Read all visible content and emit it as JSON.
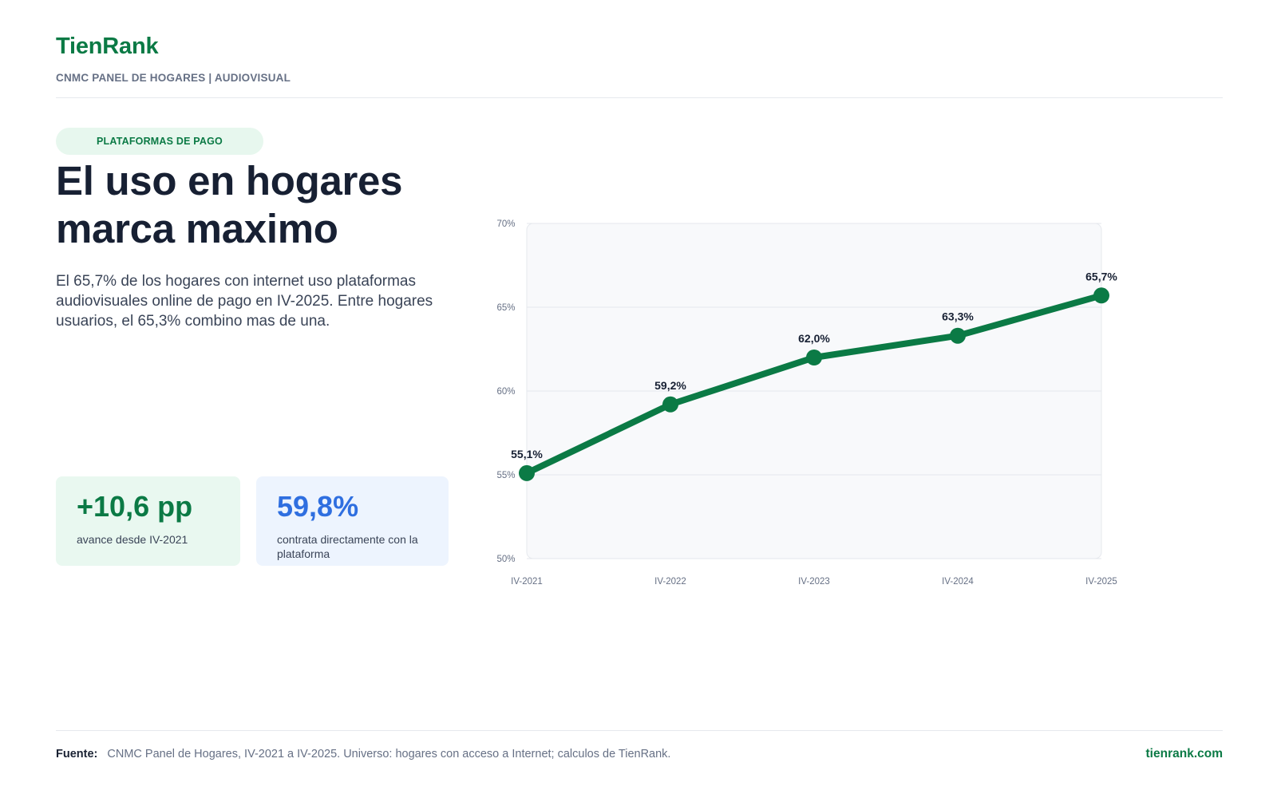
{
  "brand": {
    "name": "TienRank",
    "subtitle": "CNMC PANEL DE HOGARES | AUDIOVISUAL"
  },
  "category_pill": "PLATAFORMAS DE PAGO",
  "headline": {
    "line1": "El uso en hogares",
    "line2": "marca maximo"
  },
  "lede": "El 65,7% de los hogares con internet uso plataformas audiovisuales online de pago en IV-2025. Entre hogares usuarios, el 65,3% combino mas de una.",
  "stats": [
    {
      "value": "+10,6 pp",
      "label": "avance desde IV-2021"
    },
    {
      "value": "59,8%",
      "label": "contrata directamente con la plataforma"
    }
  ],
  "chart_data": {
    "type": "line",
    "categories": [
      "IV-2021",
      "IV-2022",
      "IV-2023",
      "IV-2024",
      "IV-2025"
    ],
    "values": [
      55.1,
      59.2,
      62.0,
      63.3,
      65.7
    ],
    "data_labels": [
      "55,1%",
      "59,2%",
      "62,0%",
      "63,3%",
      "65,7%"
    ],
    "ylim": [
      50,
      70
    ],
    "yticks": [
      50,
      55,
      60,
      65,
      70
    ],
    "ytick_labels": [
      "50%",
      "55%",
      "60%",
      "65%",
      "70%"
    ],
    "grid": true,
    "line_color": "#0b7a45",
    "plot_background": "#f8f9fb"
  },
  "footer": {
    "source_key": "Fuente:",
    "source_text": "CNMC Panel de Hogares, IV-2021 a IV-2025. Universo: hogares con acceso a Internet; calculos de TienRank.",
    "site": "tienrank.com"
  },
  "colors": {
    "brand_green": "#0b7a45",
    "accent_blue": "#2f6fe0",
    "text_dark": "#172033",
    "text_muted": "#667085"
  }
}
